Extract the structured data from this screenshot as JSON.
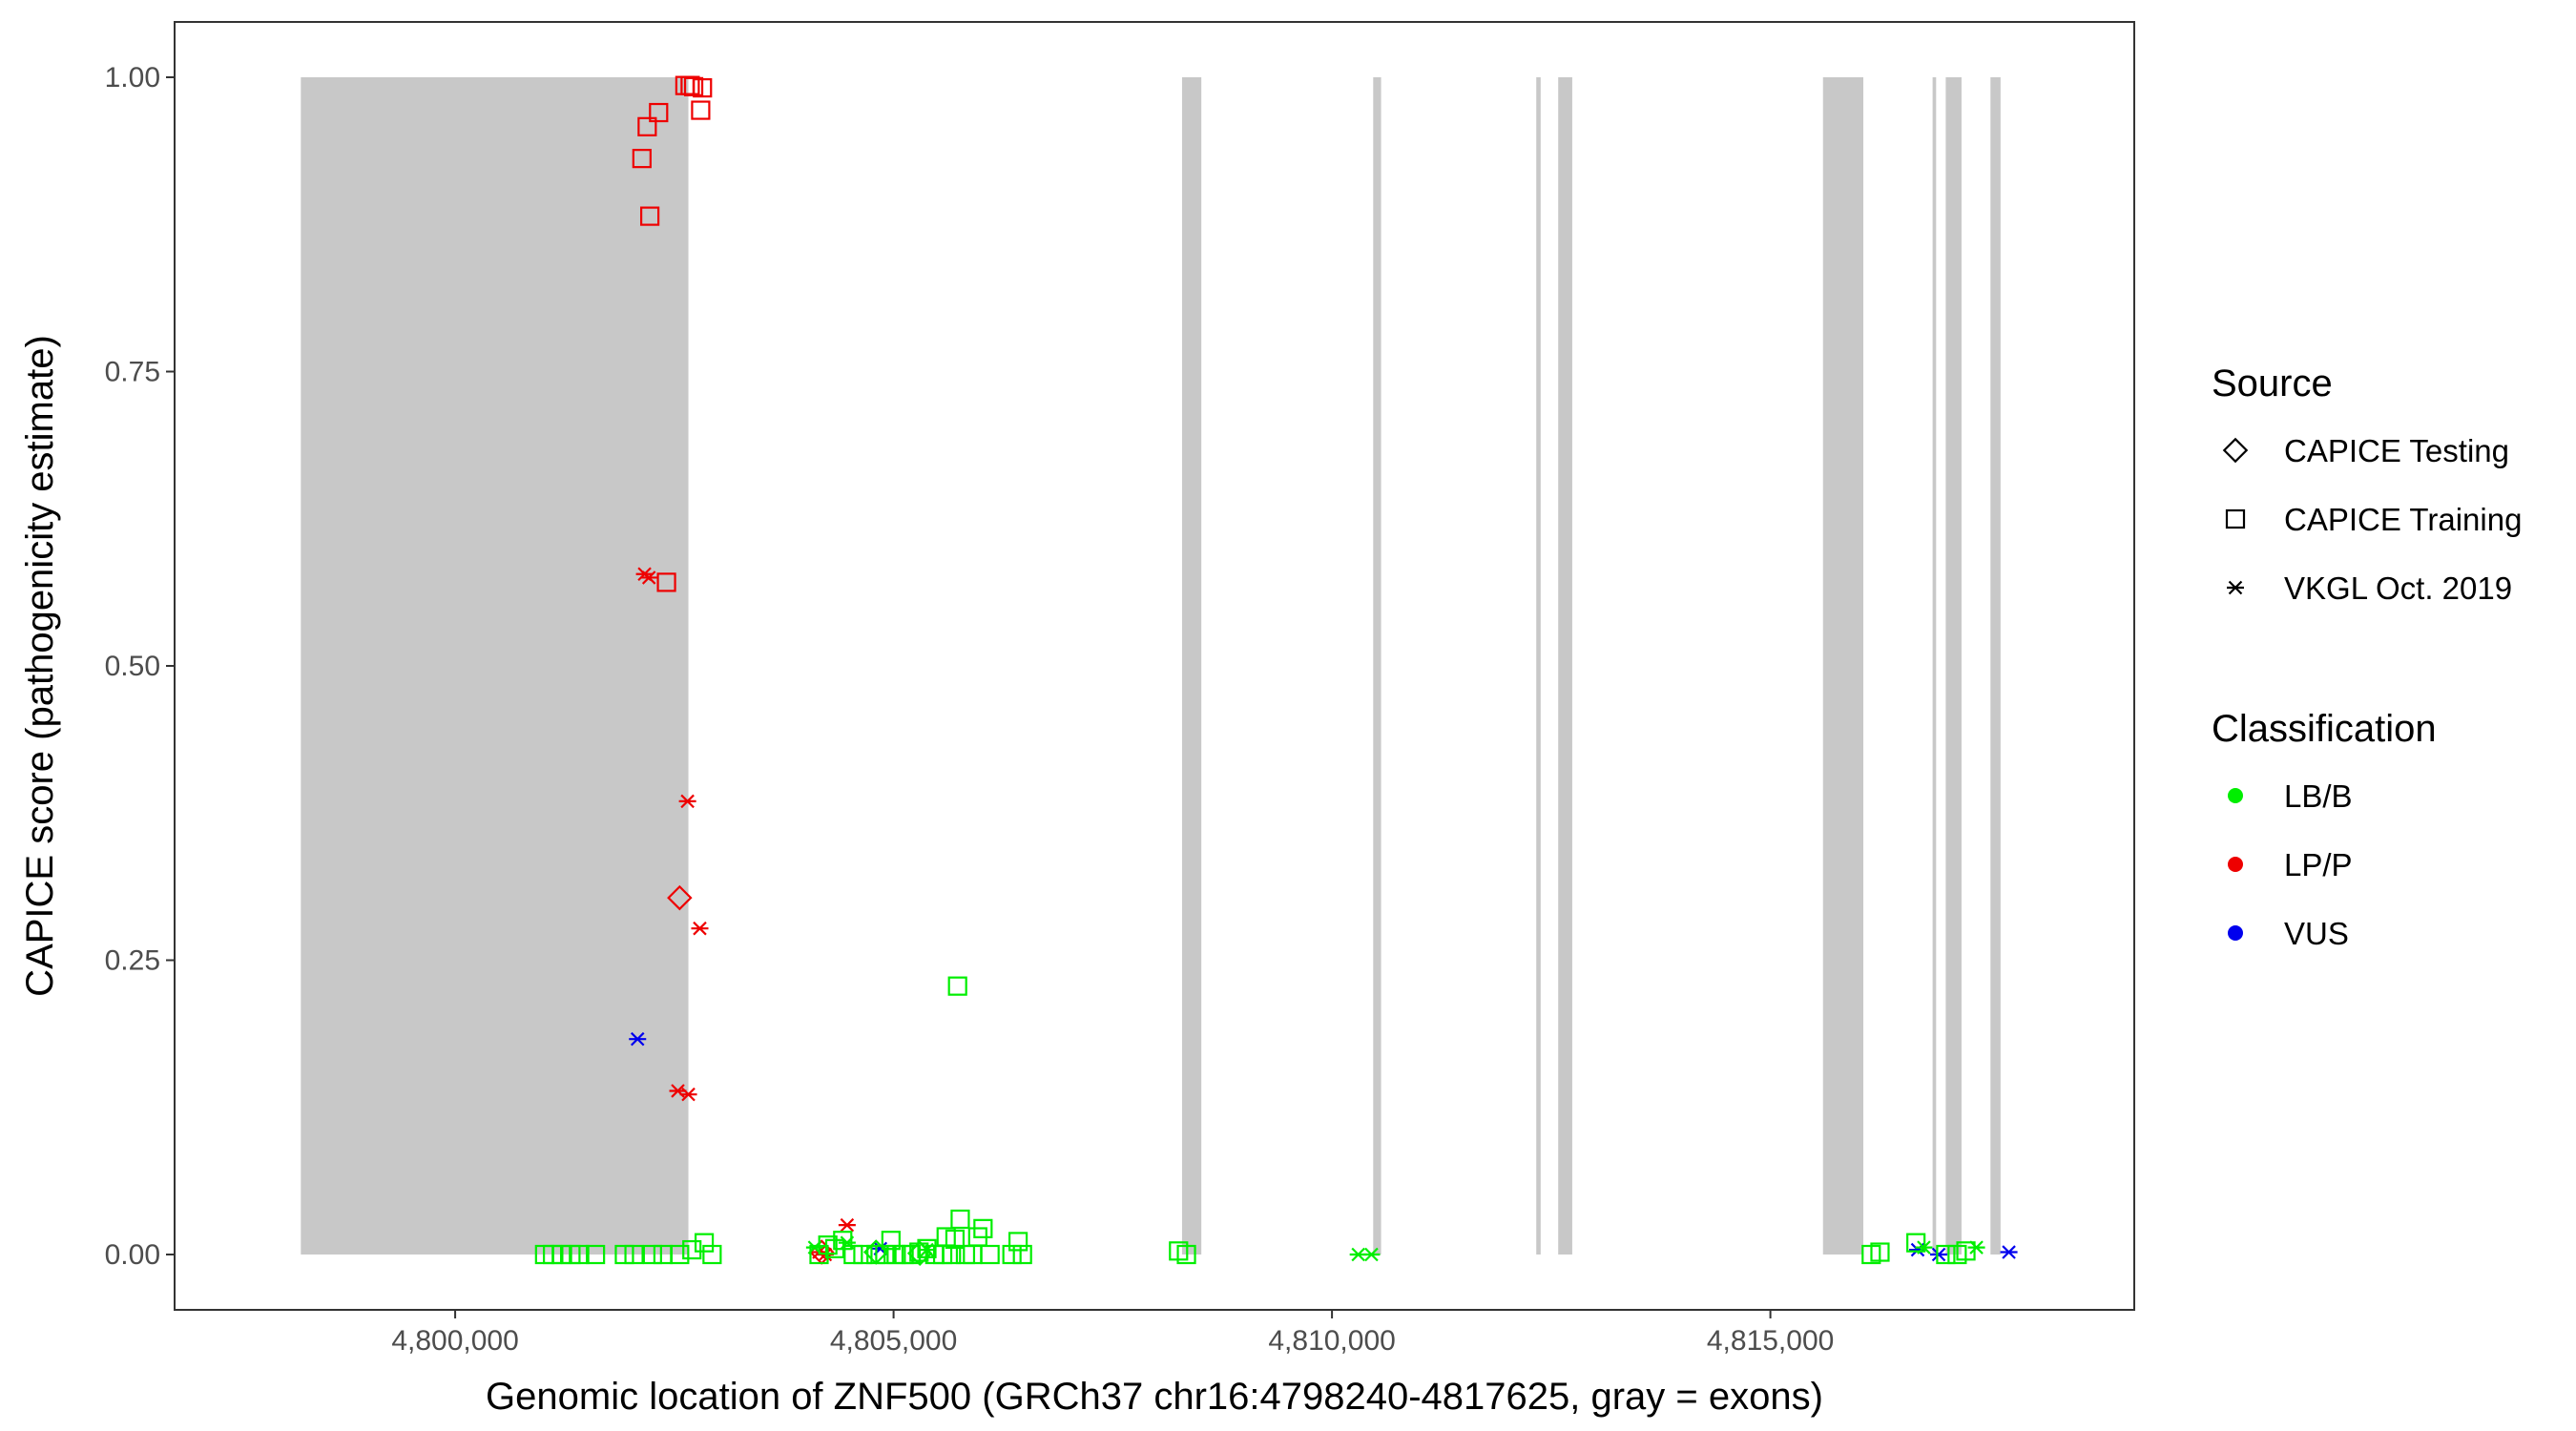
{
  "chart_data": {
    "type": "scatter",
    "title": "",
    "xlabel": "Genomic location of ZNF500 (GRCh37 chr16:4798240-4817625, gray = exons)",
    "ylabel": "CAPICE score (pathogenicity estimate)",
    "xlim": [
      4796800,
      4819150
    ],
    "ylim": [
      -0.047,
      1.047
    ],
    "x_ticks": [
      4800000,
      4805000,
      4810000,
      4815000
    ],
    "x_tick_labels": [
      "4,800,000",
      "4,805,000",
      "4,810,000",
      "4,815,000"
    ],
    "y_ticks": [
      0,
      0.25,
      0.5,
      0.75,
      1.0
    ],
    "y_tick_labels": [
      "0.00",
      "0.25",
      "0.50",
      "0.75",
      "1.00"
    ],
    "grid": false,
    "exons": [
      [
        4798240,
        4802660
      ],
      [
        4808290,
        4808510
      ],
      [
        4810470,
        4810560
      ],
      [
        4812330,
        4812380
      ],
      [
        4812580,
        4812740
      ],
      [
        4815600,
        4816060
      ],
      [
        4816850,
        4816890
      ],
      [
        4817000,
        4817180
      ],
      [
        4817510,
        4817625
      ]
    ],
    "exon_color": "#c8c8c8",
    "legend": {
      "placement": "right",
      "source_title": "Source",
      "source_entries": [
        {
          "label": "CAPICE Testing",
          "shape": "diamond"
        },
        {
          "label": "CAPICE Training",
          "shape": "square"
        },
        {
          "label": "VKGL Oct. 2019",
          "shape": "asterisk"
        }
      ],
      "classification_title": "Classification",
      "classification_entries": [
        {
          "label": "LB/B",
          "color": "#00ee00"
        },
        {
          "label": "LP/P",
          "color": "#ee0000"
        },
        {
          "label": "VUS",
          "color": "#0000ee"
        }
      ]
    },
    "series": [
      {
        "source": "CAPICE Training",
        "classification": "LP/P",
        "points": [
          [
            4802620,
            0.993
          ],
          [
            4802680,
            0.993
          ],
          [
            4802720,
            0.992
          ],
          [
            4802820,
            0.991
          ],
          [
            4802800,
            0.972
          ],
          [
            4802320,
            0.97
          ],
          [
            4802190,
            0.958
          ],
          [
            4802130,
            0.931
          ],
          [
            4802220,
            0.882
          ],
          [
            4802410,
            0.571
          ]
        ]
      },
      {
        "source": "VKGL Oct. 2019",
        "classification": "LP/P",
        "points": [
          [
            4802160,
            0.578
          ],
          [
            4802210,
            0.575
          ],
          [
            4802650,
            0.385
          ],
          [
            4802790,
            0.277
          ],
          [
            4802540,
            0.139
          ],
          [
            4802660,
            0.136
          ],
          [
            4804150,
            0.002
          ],
          [
            4804220,
            0.0
          ],
          [
            4804470,
            0.025
          ]
        ]
      },
      {
        "source": "CAPICE Testing",
        "classification": "LP/P",
        "points": [
          [
            4802560,
            0.303
          ],
          [
            4804180,
            0.002
          ]
        ]
      },
      {
        "source": "VKGL Oct. 2019",
        "classification": "VUS",
        "points": [
          [
            4802080,
            0.183
          ],
          [
            4804850,
            0.005
          ],
          [
            4816680,
            0.004
          ],
          [
            4816920,
            0.0
          ],
          [
            4817720,
            0.002
          ]
        ]
      },
      {
        "source": "CAPICE Training",
        "classification": "LB/B",
        "points": [
          [
            4801020,
            0.0
          ],
          [
            4801110,
            0.0
          ],
          [
            4801210,
            0.0
          ],
          [
            4801320,
            0.0
          ],
          [
            4801420,
            0.0
          ],
          [
            4801600,
            0.0
          ],
          [
            4801930,
            0.0
          ],
          [
            4802040,
            0.0
          ],
          [
            4802250,
            0.0
          ],
          [
            4802370,
            0.0
          ],
          [
            4802560,
            0.0
          ],
          [
            4802700,
            0.004
          ],
          [
            4802840,
            0.01
          ],
          [
            4802930,
            0.0
          ],
          [
            4804150,
            0.0
          ],
          [
            4804250,
            0.008
          ],
          [
            4804330,
            0.005
          ],
          [
            4804420,
            0.012
          ],
          [
            4804540,
            0.0
          ],
          [
            4804650,
            0.0
          ],
          [
            4804800,
            0.0
          ],
          [
            4804900,
            0.0
          ],
          [
            4804970,
            0.012
          ],
          [
            4805030,
            0.0
          ],
          [
            4805120,
            0.0
          ],
          [
            4805200,
            0.0
          ],
          [
            4805290,
            0.002
          ],
          [
            4805380,
            0.005
          ],
          [
            4805470,
            0.0
          ],
          [
            4805560,
            0.0
          ],
          [
            4805600,
            0.015
          ],
          [
            4805660,
            0.0
          ],
          [
            4805700,
            0.013
          ],
          [
            4805730,
            0.228
          ],
          [
            4805760,
            0.03
          ],
          [
            4805820,
            0.0
          ],
          [
            4805900,
            0.0
          ],
          [
            4805960,
            0.015
          ],
          [
            4806020,
            0.022
          ],
          [
            4806100,
            0.0
          ],
          [
            4806350,
            0.0
          ],
          [
            4806420,
            0.011
          ],
          [
            4806470,
            0.0
          ],
          [
            4808250,
            0.003
          ],
          [
            4808340,
            0.0
          ],
          [
            4816150,
            0.0
          ],
          [
            4816250,
            0.002
          ],
          [
            4816660,
            0.01
          ],
          [
            4817000,
            0.0
          ],
          [
            4817130,
            0.0
          ],
          [
            4817230,
            0.003
          ]
        ]
      },
      {
        "source": "VKGL Oct. 2019",
        "classification": "LB/B",
        "points": [
          [
            4804100,
            0.006
          ],
          [
            4804470,
            0.01
          ],
          [
            4805380,
            0.004
          ],
          [
            4810300,
            0.0
          ],
          [
            4810450,
            0.0
          ],
          [
            4816750,
            0.006
          ],
          [
            4817350,
            0.006
          ]
        ]
      },
      {
        "source": "CAPICE Testing",
        "classification": "LB/B",
        "points": [
          [
            4804800,
            0.002
          ],
          [
            4805300,
            0.001
          ]
        ]
      }
    ]
  }
}
